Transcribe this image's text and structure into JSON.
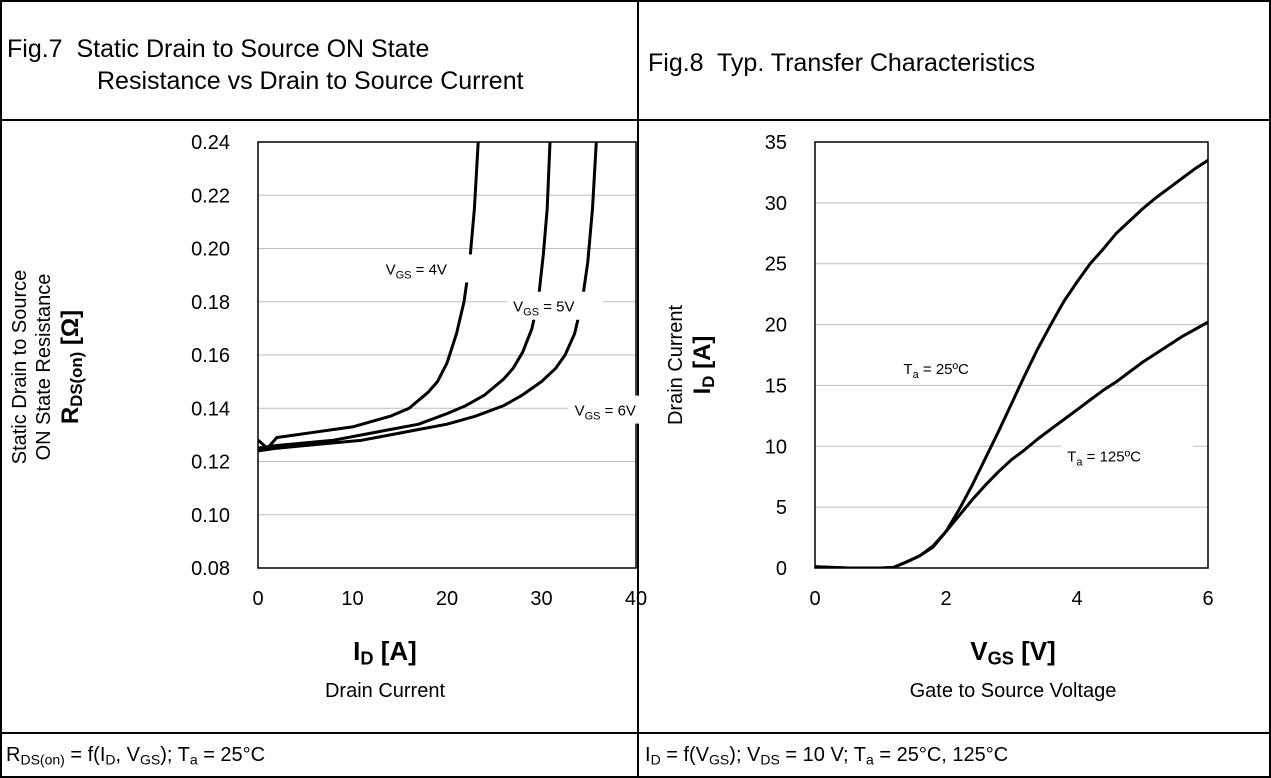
{
  "panels": {
    "left": {
      "title_line1": "Fig.7  Static Drain to Source ON State",
      "title_line2": "Resistance vs Drain to Source Current",
      "ylabel_line1": "Static Drain to Source",
      "ylabel_line2": "ON State Resistance",
      "ylabel_sym": "R",
      "ylabel_sub": "DS(on)",
      "ylabel_unit": " [Ω]",
      "xlabel_sym": "I",
      "xlabel_sub": "D",
      "xlabel_unit": " [A]",
      "xlabel_desc": "Drain Current",
      "footer": {
        "a": "R",
        "a_sub": "DS(on)",
        "b": " = f(I",
        "b_sub": "D",
        "c": ", V",
        "c_sub": "GS",
        "d": "); T",
        "d_sub": "a",
        "e": " = 25°C"
      }
    },
    "right": {
      "title": "Fig.8  Typ. Transfer Characteristics",
      "ylabel_line1": "Drain Current",
      "ylabel_sym": "I",
      "ylabel_sub": "D",
      "ylabel_unit": " [A]",
      "xlabel_sym": "V",
      "xlabel_sub": "GS",
      "xlabel_unit": " [V]",
      "xlabel_desc": "Gate to Source Voltage",
      "footer": {
        "a": "I",
        "a_sub": "D",
        "b": " = f(V",
        "b_sub": "GS",
        "c": "); V",
        "c_sub": "DS",
        "d": " = 10 V; T",
        "d_sub": "a",
        "e": " = 25°C, 125°C"
      }
    }
  },
  "chart_data": [
    {
      "type": "line",
      "xlim": [
        0,
        40
      ],
      "ylim": [
        0.08,
        0.24
      ],
      "xticks": [
        0,
        10,
        20,
        30,
        40
      ],
      "yticks": [
        "0.08",
        "0.10",
        "0.12",
        "0.14",
        "0.16",
        "0.18",
        "0.20",
        "0.22",
        "0.24"
      ],
      "grid": "y",
      "series": [
        {
          "name": "VGS = 4V",
          "label_pre": "V",
          "label_sub": "GS",
          "label_post": " = 4V",
          "points": [
            [
              0,
              0.128
            ],
            [
              1,
              0.125
            ],
            [
              2,
              0.129
            ],
            [
              4,
              0.13
            ],
            [
              6,
              0.131
            ],
            [
              8,
              0.132
            ],
            [
              10,
              0.133
            ],
            [
              12,
              0.135
            ],
            [
              14,
              0.137
            ],
            [
              16,
              0.14
            ],
            [
              18,
              0.146
            ],
            [
              19,
              0.15
            ],
            [
              20,
              0.157
            ],
            [
              21,
              0.168
            ],
            [
              21.8,
              0.18
            ],
            [
              22.4,
              0.195
            ],
            [
              22.9,
              0.215
            ],
            [
              23.3,
              0.24
            ]
          ]
        },
        {
          "name": "VGS = 5V",
          "label_pre": "V",
          "label_sub": "GS",
          "label_post": " = 5V",
          "points": [
            [
              0,
              0.125
            ],
            [
              2,
              0.126
            ],
            [
              5,
              0.127
            ],
            [
              8,
              0.128
            ],
            [
              11,
              0.13
            ],
            [
              14,
              0.132
            ],
            [
              17,
              0.134
            ],
            [
              20,
              0.138
            ],
            [
              22,
              0.141
            ],
            [
              24,
              0.145
            ],
            [
              26,
              0.151
            ],
            [
              27,
              0.155
            ],
            [
              28,
              0.161
            ],
            [
              29,
              0.17
            ],
            [
              29.7,
              0.182
            ],
            [
              30.2,
              0.198
            ],
            [
              30.6,
              0.215
            ],
            [
              30.9,
              0.24
            ]
          ]
        },
        {
          "name": "VGS = 6V",
          "label_pre": "V",
          "label_sub": "GS",
          "label_post": " = 6V",
          "points": [
            [
              0,
              0.124
            ],
            [
              2,
              0.125
            ],
            [
              5,
              0.126
            ],
            [
              8,
              0.127
            ],
            [
              11,
              0.128
            ],
            [
              14,
              0.13
            ],
            [
              17,
              0.132
            ],
            [
              20,
              0.134
            ],
            [
              23,
              0.137
            ],
            [
              26,
              0.141
            ],
            [
              28,
              0.145
            ],
            [
              30,
              0.15
            ],
            [
              31.5,
              0.155
            ],
            [
              32.5,
              0.16
            ],
            [
              33.5,
              0.168
            ],
            [
              34.3,
              0.18
            ],
            [
              34.9,
              0.195
            ],
            [
              35.4,
              0.215
            ],
            [
              35.8,
              0.24
            ]
          ]
        }
      ],
      "annotations": [
        {
          "series": 0,
          "x": 13.5,
          "y": 0.191
        },
        {
          "series": 1,
          "x": 27.0,
          "y": 0.177
        },
        {
          "series": 2,
          "x": 33.5,
          "y": 0.138
        }
      ]
    },
    {
      "type": "line",
      "xlim": [
        0,
        6
      ],
      "ylim": [
        0,
        35
      ],
      "xticks": [
        "0",
        "2",
        "4",
        "6"
      ],
      "yticks": [
        "0",
        "5",
        "10",
        "15",
        "20",
        "25",
        "30",
        "35"
      ],
      "grid": "y",
      "series": [
        {
          "name": "Ta = 25ºC",
          "label_pre": "T",
          "label_sub": "a",
          "label_post": " = 25ºC",
          "points": [
            [
              0,
              0.1
            ],
            [
              0.5,
              0.0
            ],
            [
              1.0,
              0.0
            ],
            [
              1.2,
              0.05
            ],
            [
              1.4,
              0.5
            ],
            [
              1.6,
              1.0
            ],
            [
              1.8,
              1.7
            ],
            [
              2.0,
              3.0
            ],
            [
              2.2,
              4.8
            ],
            [
              2.4,
              6.8
            ],
            [
              2.6,
              9.0
            ],
            [
              2.8,
              11.2
            ],
            [
              3.0,
              13.5
            ],
            [
              3.2,
              15.8
            ],
            [
              3.4,
              18.0
            ],
            [
              3.6,
              20.0
            ],
            [
              3.8,
              21.9
            ],
            [
              4.0,
              23.5
            ],
            [
              4.2,
              25.0
            ],
            [
              4.4,
              26.2
            ],
            [
              4.6,
              27.5
            ],
            [
              4.8,
              28.5
            ],
            [
              5.0,
              29.5
            ],
            [
              5.2,
              30.4
            ],
            [
              5.4,
              31.2
            ],
            [
              5.6,
              32.0
            ],
            [
              5.8,
              32.8
            ],
            [
              6.0,
              33.5
            ]
          ]
        },
        {
          "name": "Ta = 125ºC",
          "label_pre": "T",
          "label_sub": "a",
          "label_post": " = 125ºC",
          "points": [
            [
              0,
              0.1
            ],
            [
              0.5,
              0.0
            ],
            [
              1.0,
              0.0
            ],
            [
              1.2,
              0.05
            ],
            [
              1.4,
              0.5
            ],
            [
              1.6,
              1.0
            ],
            [
              1.8,
              1.8
            ],
            [
              2.0,
              3.0
            ],
            [
              2.2,
              4.3
            ],
            [
              2.4,
              5.6
            ],
            [
              2.6,
              6.8
            ],
            [
              2.8,
              7.9
            ],
            [
              3.0,
              8.9
            ],
            [
              3.2,
              9.7
            ],
            [
              3.4,
              10.6
            ],
            [
              3.6,
              11.4
            ],
            [
              3.8,
              12.2
            ],
            [
              4.0,
              13.0
            ],
            [
              4.2,
              13.8
            ],
            [
              4.4,
              14.6
            ],
            [
              4.6,
              15.3
            ],
            [
              4.8,
              16.1
            ],
            [
              5.0,
              16.9
            ],
            [
              5.2,
              17.6
            ],
            [
              5.4,
              18.3
            ],
            [
              5.6,
              19.0
            ],
            [
              5.8,
              19.6
            ],
            [
              6.0,
              20.2
            ]
          ]
        }
      ],
      "annotations": [
        {
          "series": 0,
          "x": 1.35,
          "y": 16.1
        },
        {
          "series": 1,
          "x": 3.85,
          "y": 8.9
        }
      ]
    }
  ]
}
